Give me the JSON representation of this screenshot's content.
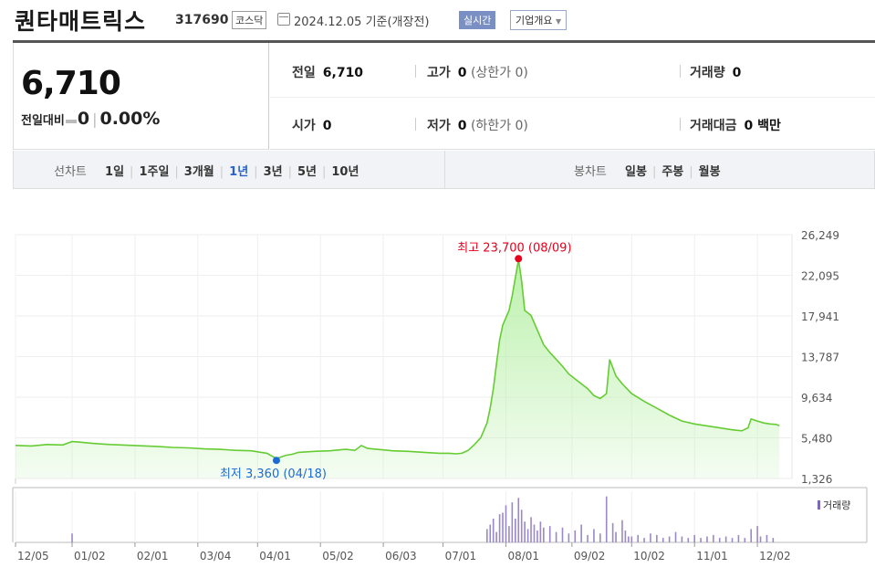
{
  "header": {
    "company_name": "퀀타매트릭스",
    "stock_code": "317690",
    "market": "코스닥",
    "date_text": "2024.12.05  기준(개장전)",
    "realtime_label": "실시간",
    "overview_label": "기업개요"
  },
  "price": {
    "current": "6,710",
    "change_label": "전일대비",
    "change_value": "0",
    "change_rate": "0.00%"
  },
  "stats": {
    "prev_close_label": "전일",
    "prev_close": "6,710",
    "high_label": "고가",
    "high": "0",
    "high_sub": "(상한가 0)",
    "volume_label": "거래량",
    "volume": "0",
    "open_label": "시가",
    "open": "0",
    "low_label": "저가",
    "low": "0",
    "low_sub": "(하한가 0)",
    "amount_label": "거래대금",
    "amount": "0 백만"
  },
  "chart_tabs": {
    "line_label": "선차트",
    "line_tabs": [
      "1일",
      "1주일",
      "3개월",
      "1년",
      "3년",
      "5년",
      "10년"
    ],
    "selected": "1년",
    "candle_label": "봉차트",
    "candle_tabs": [
      "일봉",
      "주봉",
      "월봉"
    ]
  },
  "chart_data": {
    "type": "area",
    "y_ticks": [
      "26,249",
      "22,095",
      "17,941",
      "13,787",
      "9,634",
      "5,480",
      "1,326"
    ],
    "ylim": [
      1326,
      26249
    ],
    "x_ticks": [
      "12/05",
      "01/02",
      "02/01",
      "03/04",
      "04/01",
      "05/02",
      "06/03",
      "07/01",
      "08/01",
      "09/02",
      "10/02",
      "11/01",
      "12/02"
    ],
    "x_tick_pos": [
      0,
      18,
      38,
      58,
      77,
      97,
      117,
      136,
      156,
      177,
      196,
      216,
      236
    ],
    "x_range": [
      0,
      247
    ],
    "high_annotation": "최고 23,700 (08/09)",
    "high_point": [
      160,
      23700
    ],
    "low_annotation": "최저 3,360 (04/18)",
    "low_point": [
      83,
      3360
    ],
    "volume_label": "거래량",
    "accent_line": "#66cc33",
    "fill_color": "#b8f0a8",
    "high_color": "#e8001c",
    "low_color": "#1c6ad6",
    "series": [
      {
        "values": [
          [
            0,
            4700
          ],
          [
            5,
            4650
          ],
          [
            10,
            4800
          ],
          [
            15,
            4750
          ],
          [
            18,
            5100
          ],
          [
            20,
            5050
          ],
          [
            25,
            4900
          ],
          [
            30,
            4800
          ],
          [
            38,
            4700
          ],
          [
            45,
            4600
          ],
          [
            50,
            4500
          ],
          [
            55,
            4450
          ],
          [
            60,
            4350
          ],
          [
            65,
            4300
          ],
          [
            70,
            4200
          ],
          [
            75,
            4150
          ],
          [
            80,
            3900
          ],
          [
            83,
            3360
          ],
          [
            86,
            3700
          ],
          [
            88,
            3800
          ],
          [
            90,
            4000
          ],
          [
            95,
            4100
          ],
          [
            100,
            4150
          ],
          [
            105,
            4300
          ],
          [
            108,
            4200
          ],
          [
            110,
            4700
          ],
          [
            112,
            4400
          ],
          [
            115,
            4300
          ],
          [
            120,
            4150
          ],
          [
            125,
            4100
          ],
          [
            130,
            4000
          ],
          [
            135,
            3900
          ],
          [
            138,
            3900
          ],
          [
            140,
            3850
          ],
          [
            142,
            3900
          ],
          [
            144,
            4200
          ],
          [
            146,
            4800
          ],
          [
            148,
            5500
          ],
          [
            150,
            7000
          ],
          [
            151,
            8500
          ],
          [
            152,
            10500
          ],
          [
            153,
            13000
          ],
          [
            154,
            15500
          ],
          [
            155,
            17000
          ],
          [
            157,
            18500
          ],
          [
            158,
            20000
          ],
          [
            160,
            23700
          ],
          [
            161,
            21500
          ],
          [
            162,
            18500
          ],
          [
            164,
            18000
          ],
          [
            166,
            16500
          ],
          [
            168,
            15000
          ],
          [
            170,
            14200
          ],
          [
            172,
            13500
          ],
          [
            174,
            12800
          ],
          [
            176,
            12000
          ],
          [
            178,
            11500
          ],
          [
            180,
            11000
          ],
          [
            182,
            10500
          ],
          [
            184,
            9800
          ],
          [
            186,
            9500
          ],
          [
            188,
            10000
          ],
          [
            189,
            13500
          ],
          [
            191,
            11800
          ],
          [
            193,
            11000
          ],
          [
            196,
            10000
          ],
          [
            200,
            9200
          ],
          [
            204,
            8500
          ],
          [
            208,
            7800
          ],
          [
            212,
            7200
          ],
          [
            216,
            6900
          ],
          [
            220,
            6700
          ],
          [
            224,
            6500
          ],
          [
            228,
            6300
          ],
          [
            231,
            6200
          ],
          [
            233,
            6500
          ],
          [
            234,
            7400
          ],
          [
            236,
            7200
          ],
          [
            238,
            7000
          ],
          [
            240,
            6900
          ],
          [
            242,
            6850
          ],
          [
            243,
            6710
          ]
        ]
      }
    ],
    "volume": [
      [
        18,
        6
      ],
      [
        150,
        9
      ],
      [
        151,
        12
      ],
      [
        152,
        16
      ],
      [
        153,
        7
      ],
      [
        154,
        19
      ],
      [
        155,
        20
      ],
      [
        156,
        25
      ],
      [
        157,
        11
      ],
      [
        158,
        27
      ],
      [
        159,
        16
      ],
      [
        160,
        30
      ],
      [
        161,
        22
      ],
      [
        162,
        14
      ],
      [
        163,
        9
      ],
      [
        164,
        17
      ],
      [
        165,
        12
      ],
      [
        166,
        8
      ],
      [
        167,
        14
      ],
      [
        168,
        10
      ],
      [
        170,
        11
      ],
      [
        172,
        7
      ],
      [
        174,
        10
      ],
      [
        176,
        6
      ],
      [
        178,
        8
      ],
      [
        180,
        12
      ],
      [
        182,
        5
      ],
      [
        184,
        9
      ],
      [
        186,
        6
      ],
      [
        188,
        31
      ],
      [
        190,
        13
      ],
      [
        191,
        7
      ],
      [
        193,
        15
      ],
      [
        194,
        8
      ],
      [
        195,
        4
      ],
      [
        196,
        4
      ],
      [
        198,
        5
      ],
      [
        200,
        3
      ],
      [
        202,
        6
      ],
      [
        204,
        5
      ],
      [
        206,
        3
      ],
      [
        208,
        4
      ],
      [
        210,
        7
      ],
      [
        212,
        4
      ],
      [
        214,
        3
      ],
      [
        216,
        5
      ],
      [
        218,
        3
      ],
      [
        220,
        4
      ],
      [
        222,
        5
      ],
      [
        224,
        3
      ],
      [
        226,
        4
      ],
      [
        228,
        3
      ],
      [
        230,
        5
      ],
      [
        232,
        3
      ],
      [
        234,
        9
      ],
      [
        236,
        11
      ],
      [
        237,
        4
      ],
      [
        239,
        5
      ],
      [
        241,
        3
      ]
    ],
    "volume_max": 32
  }
}
